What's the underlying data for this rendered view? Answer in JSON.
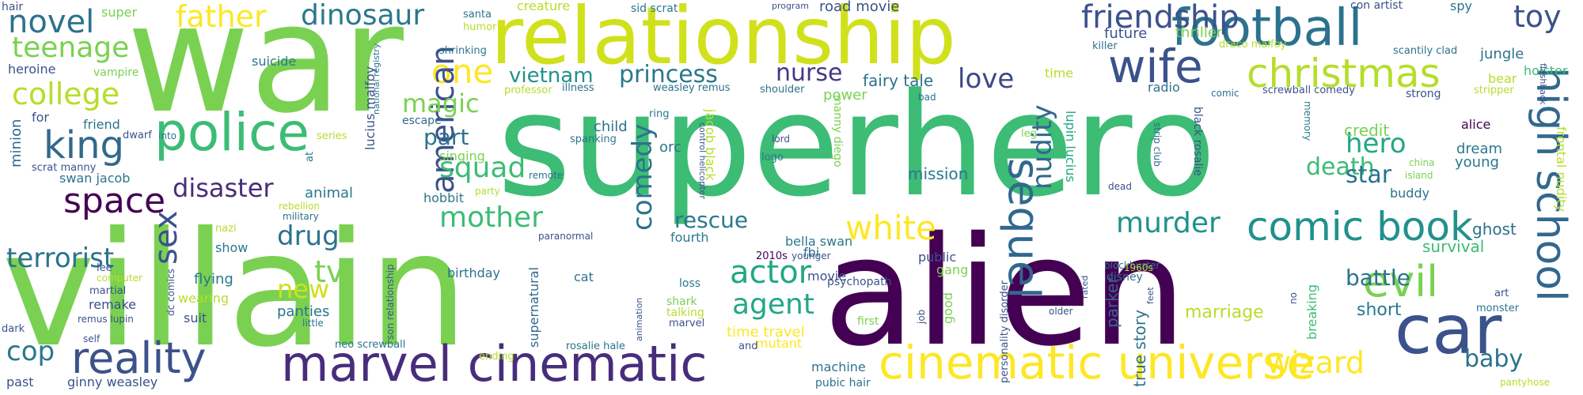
{
  "words": [
    {
      "text": "superhero",
      "color": "#3cbc75"
    },
    {
      "text": "alien",
      "color": "#440154"
    },
    {
      "text": "villain",
      "color": "#7ad151"
    },
    {
      "text": "war",
      "color": "#7ad151"
    },
    {
      "text": "relationship",
      "color": "#d0e11c"
    },
    {
      "text": "marvel cinematic",
      "color": "#472d7b"
    },
    {
      "text": "car",
      "color": "#3b528b"
    },
    {
      "text": "cinematic universe",
      "color": "#fde725"
    },
    {
      "text": "football",
      "color": "#2c728e"
    },
    {
      "text": "comic book",
      "color": "#21918c"
    },
    {
      "text": "reality",
      "color": "#3b528b"
    },
    {
      "text": "police",
      "color": "#3cbc75"
    },
    {
      "text": "high school",
      "color": "#31688e"
    },
    {
      "text": "christmas",
      "color": "#b5de2b"
    },
    {
      "text": "wife",
      "color": "#3b528b"
    },
    {
      "text": "evil",
      "color": "#7ad151"
    },
    {
      "text": "sequel",
      "color": "#31688e"
    },
    {
      "text": "king",
      "color": "#31688e"
    },
    {
      "text": "friendship",
      "color": "#3b528b"
    },
    {
      "text": "dinosaur",
      "color": "#2a788e"
    },
    {
      "text": "father",
      "color": "#fde725"
    },
    {
      "text": "space",
      "color": "#440154"
    },
    {
      "text": "novel",
      "color": "#2c728e"
    },
    {
      "text": "college",
      "color": "#b5de2b"
    },
    {
      "text": "teenage",
      "color": "#7ad151"
    },
    {
      "text": "one",
      "color": "#fde725"
    },
    {
      "text": "vietnam",
      "color": "#21918c"
    },
    {
      "text": "princess",
      "color": "#2a788e"
    },
    {
      "text": "nurse",
      "color": "#443983"
    },
    {
      "text": "love",
      "color": "#3e4989"
    },
    {
      "text": "toy",
      "color": "#3b528b"
    },
    {
      "text": "murder",
      "color": "#21918c"
    },
    {
      "text": "wizard",
      "color": "#fde725"
    },
    {
      "text": "white",
      "color": "#fde725"
    },
    {
      "text": "mother",
      "color": "#3cbc75"
    },
    {
      "text": "american",
      "color": "#3b528b"
    },
    {
      "text": "comedy",
      "color": "#2c728e"
    },
    {
      "text": "actor",
      "color": "#22a884"
    },
    {
      "text": "agent",
      "color": "#22a884"
    },
    {
      "text": "squad",
      "color": "#3cbc75"
    },
    {
      "text": "disaster",
      "color": "#472d7b"
    },
    {
      "text": "terrorist",
      "color": "#2c728e"
    },
    {
      "text": "sex",
      "color": "#3b528b"
    },
    {
      "text": "tv",
      "color": "#7ad151"
    },
    {
      "text": "drug",
      "color": "#2c728e"
    },
    {
      "text": "new",
      "color": "#d0e11c"
    },
    {
      "text": "cop",
      "color": "#2a788e"
    },
    {
      "text": "magic",
      "color": "#7ad151"
    },
    {
      "text": "part",
      "color": "#2c728e"
    },
    {
      "text": "nudity",
      "color": "#31688e"
    },
    {
      "text": "hero",
      "color": "#22a884"
    },
    {
      "text": "death",
      "color": "#3cbc75"
    },
    {
      "text": "star",
      "color": "#2c728e"
    },
    {
      "text": "rescue",
      "color": "#2a788e"
    },
    {
      "text": "battle",
      "color": "#2c728e"
    },
    {
      "text": "baby",
      "color": "#2c728e"
    },
    {
      "text": "short",
      "color": "#2a788e"
    },
    {
      "text": "mission",
      "color": "#2a788e"
    },
    {
      "text": "fairy tale",
      "color": "#2c728e"
    },
    {
      "text": "marriage",
      "color": "#b5de2b"
    },
    {
      "text": "survival",
      "color": "#3cbc75"
    },
    {
      "text": "ghost",
      "color": "#2c728e"
    },
    {
      "text": "credit",
      "color": "#7ad151"
    },
    {
      "text": "dream",
      "color": "#2a788e"
    },
    {
      "text": "young",
      "color": "#2a788e"
    },
    {
      "text": "buddy",
      "color": "#2c728e"
    },
    {
      "text": "alice",
      "color": "#440154"
    },
    {
      "text": "jungle",
      "color": "#2c728e"
    },
    {
      "text": "holster",
      "color": "#3cbc75"
    },
    {
      "text": "spy",
      "color": "#2c728e"
    },
    {
      "text": "con artist",
      "color": "#3b528b"
    },
    {
      "text": "thriller",
      "color": "#7ad151"
    },
    {
      "text": "future",
      "color": "#3b528b"
    },
    {
      "text": "radio",
      "color": "#2c728e"
    },
    {
      "text": "power",
      "color": "#7ad151"
    },
    {
      "text": "child",
      "color": "#2c728e"
    },
    {
      "text": "orc",
      "color": "#2a788e"
    },
    {
      "text": "logo",
      "color": "#2a788e"
    },
    {
      "text": "fbi",
      "color": "#2c728e"
    },
    {
      "text": "bella swan",
      "color": "#2a788e"
    },
    {
      "text": "movie",
      "color": "#3b528b"
    },
    {
      "text": "public",
      "color": "#3b528b"
    },
    {
      "text": "gang",
      "color": "#7ad151"
    },
    {
      "text": "good",
      "color": "#7ad151"
    },
    {
      "text": "first",
      "color": "#7ad151"
    },
    {
      "text": "psychopath",
      "color": "#3b528b"
    },
    {
      "text": "disney",
      "color": "#2c728e"
    },
    {
      "text": "fourth",
      "color": "#2a788e"
    },
    {
      "text": "birthday",
      "color": "#2c728e"
    },
    {
      "text": "cat",
      "color": "#2c728e"
    },
    {
      "text": "loss",
      "color": "#2a788e"
    },
    {
      "text": "shark",
      "color": "#7ad151"
    },
    {
      "text": "talking",
      "color": "#b5de2b"
    },
    {
      "text": "marvel",
      "color": "#3b528b"
    },
    {
      "text": "time travel",
      "color": "#fde725"
    },
    {
      "text": "mutant",
      "color": "#fde725"
    },
    {
      "text": "machine",
      "color": "#2c728e"
    },
    {
      "text": "pubic hair",
      "color": "#2c728e"
    },
    {
      "text": "true story",
      "color": "#2c728e"
    },
    {
      "text": "parker",
      "color": "#31688e"
    },
    {
      "text": "animal",
      "color": "#2a788e"
    },
    {
      "text": "hobbit",
      "color": "#2a788e"
    },
    {
      "text": "swan jacob",
      "color": "#2c728e"
    },
    {
      "text": "scrat manny",
      "color": "#3b528b"
    },
    {
      "text": "minion",
      "color": "#31688e"
    },
    {
      "text": "for",
      "color": "#3b528b"
    },
    {
      "text": "friend",
      "color": "#2c728e"
    },
    {
      "text": "heroine",
      "color": "#3b528b"
    },
    {
      "text": "vampire",
      "color": "#7ad151"
    },
    {
      "text": "super",
      "color": "#7ad151"
    },
    {
      "text": "hair",
      "color": "#3b528b"
    },
    {
      "text": "suicide",
      "color": "#2a788e"
    },
    {
      "text": "dwarf",
      "color": "#3b528b"
    },
    {
      "text": "into",
      "color": "#2c728e"
    },
    {
      "text": "singing",
      "color": "#7ad151"
    },
    {
      "text": "spanking",
      "color": "#2a788e"
    },
    {
      "text": "escape",
      "color": "#31688e"
    },
    {
      "text": "lucius malfoy",
      "color": "#3b528b"
    },
    {
      "text": "national registry",
      "color": "#2c728e"
    },
    {
      "text": "series",
      "color": "#b5de2b"
    },
    {
      "text": "at",
      "color": "#2c728e"
    },
    {
      "text": "shrinking",
      "color": "#2a788e"
    },
    {
      "text": "humor",
      "color": "#b5de2b"
    },
    {
      "text": "santa",
      "color": "#2c728e"
    },
    {
      "text": "creature",
      "color": "#b5de2b"
    },
    {
      "text": "sid scrat",
      "color": "#2a788e"
    },
    {
      "text": "program",
      "color": "#3b528b"
    },
    {
      "text": "road movie",
      "color": "#3b528b"
    },
    {
      "text": "professor",
      "color": "#b5de2b"
    },
    {
      "text": "illness",
      "color": "#2c728e"
    },
    {
      "text": "weasley remus",
      "color": "#2c728e"
    },
    {
      "text": "ring",
      "color": "#2a788e"
    },
    {
      "text": "shoulder",
      "color": "#2c728e"
    },
    {
      "text": "bad",
      "color": "#2c728e"
    },
    {
      "text": "time",
      "color": "#b5de2b"
    },
    {
      "text": "killer",
      "color": "#2c728e"
    },
    {
      "text": "draco malfoy",
      "color": "#b5de2b"
    },
    {
      "text": "scantily clad",
      "color": "#2c728e"
    },
    {
      "text": "comic",
      "color": "#2c728e"
    },
    {
      "text": "screwball comedy",
      "color": "#3b528b"
    },
    {
      "text": "strong",
      "color": "#3b528b"
    },
    {
      "text": "bear",
      "color": "#b5de2b"
    },
    {
      "text": "stripper",
      "color": "#b5de2b"
    },
    {
      "text": "flashback",
      "color": "#3b528b"
    },
    {
      "text": "lord",
      "color": "#3b528b"
    },
    {
      "text": "leg",
      "color": "#7ad151"
    },
    {
      "text": "manny diego",
      "color": "#7ad151"
    },
    {
      "text": "lupin lucius",
      "color": "#22a884"
    },
    {
      "text": "jacob black",
      "color": "#b5de2b"
    },
    {
      "text": "control helicopter",
      "color": "#3b528b"
    },
    {
      "text": "strip club",
      "color": "#31688e"
    },
    {
      "text": "black rosalie",
      "color": "#3b528b"
    },
    {
      "text": "memory",
      "color": "#2a788e"
    },
    {
      "text": "china",
      "color": "#7ad151"
    },
    {
      "text": "island",
      "color": "#7ad151"
    },
    {
      "text": "frontal nudity",
      "color": "#b5de2b"
    },
    {
      "text": "dead",
      "color": "#3b528b"
    },
    {
      "text": "blockbuster",
      "color": "#2c728e"
    },
    {
      "text": "remote",
      "color": "#2c728e"
    },
    {
      "text": "paranormal",
      "color": "#3b528b"
    },
    {
      "text": "supernatural",
      "color": "#31688e"
    },
    {
      "text": "animation",
      "color": "#3b528b"
    },
    {
      "text": "2010s",
      "color": "#440154"
    },
    {
      "text": "younger",
      "color": "#3b528b"
    },
    {
      "text": "1960s",
      "color": "#b5de2b"
    },
    {
      "text": "personality disorder",
      "color": "#3b528b"
    },
    {
      "text": "son relationship",
      "color": "#3b528b"
    },
    {
      "text": "rated",
      "color": "#3b528b"
    },
    {
      "text": "feet",
      "color": "#3b528b"
    },
    {
      "text": "older",
      "color": "#3b528b"
    },
    {
      "text": "job",
      "color": "#3b528b"
    },
    {
      "text": "no",
      "color": "#3b528b"
    },
    {
      "text": "breaking",
      "color": "#3cbc75"
    },
    {
      "text": "art",
      "color": "#3b528b"
    },
    {
      "text": "monster",
      "color": "#2c728e"
    },
    {
      "text": "pantyhose",
      "color": "#b5de2b"
    },
    {
      "text": "and",
      "color": "#3b528b"
    },
    {
      "text": "ending",
      "color": "#b5de2b"
    },
    {
      "text": "rosalie hale",
      "color": "#2c728e"
    },
    {
      "text": "neo screwball",
      "color": "#2c728e"
    },
    {
      "text": "ginny weasley",
      "color": "#3b528b"
    },
    {
      "text": "past",
      "color": "#3b528b"
    },
    {
      "text": "dark",
      "color": "#3b528b"
    },
    {
      "text": "self",
      "color": "#3b528b"
    },
    {
      "text": "remus lupin",
      "color": "#3b528b"
    },
    {
      "text": "remake",
      "color": "#3b528b"
    },
    {
      "text": "martial",
      "color": "#3b528b"
    },
    {
      "text": "computer",
      "color": "#b5de2b"
    },
    {
      "text": "lee",
      "color": "#3b528b"
    },
    {
      "text": "dc comics",
      "color": "#3b528b"
    },
    {
      "text": "show",
      "color": "#2a788e"
    },
    {
      "text": "flying",
      "color": "#2a788e"
    },
    {
      "text": "wearing",
      "color": "#b5de2b"
    },
    {
      "text": "suit",
      "color": "#3b528b"
    },
    {
      "text": "panties",
      "color": "#2c728e"
    },
    {
      "text": "little",
      "color": "#2c728e"
    },
    {
      "text": "nazi",
      "color": "#b5de2b"
    },
    {
      "text": "rebellion",
      "color": "#b5de2b"
    },
    {
      "text": "military",
      "color": "#2c728e"
    },
    {
      "text": "party",
      "color": "#b5de2b"
    }
  ]
}
